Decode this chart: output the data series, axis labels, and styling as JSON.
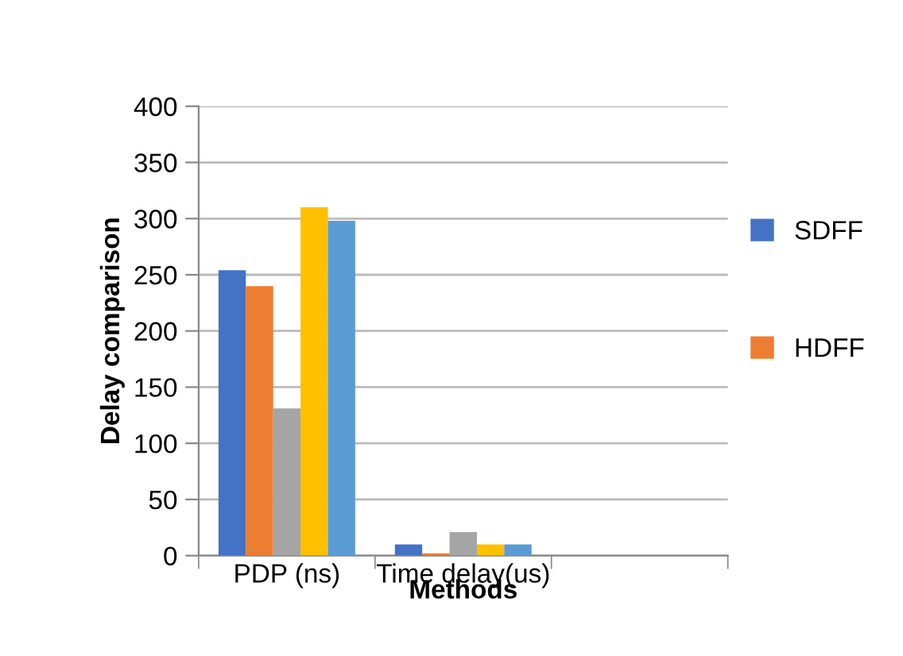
{
  "chart_data": {
    "type": "bar",
    "xlabel": "Methods",
    "ylabel": "Delay comparison",
    "categories": [
      "PDP (ns)",
      "Time delay(us)",
      null
    ],
    "series": [
      {
        "name": "SDFF",
        "color": "#4472c4",
        "values": [
          254,
          10,
          null
        ]
      },
      {
        "name": "HDFF",
        "color": "#ed7d31",
        "values": [
          240,
          2,
          null
        ]
      },
      {
        "color": "#a5a5a5",
        "values": [
          131,
          21,
          null
        ]
      },
      {
        "color": "#ffc000",
        "values": [
          310,
          10,
          null
        ]
      },
      {
        "color": "#5b9bd5",
        "values": [
          298,
          10,
          null
        ]
      }
    ],
    "ylim": [
      0,
      400
    ],
    "yticks": [
      0,
      50,
      100,
      150,
      200,
      250,
      300,
      350,
      400
    ],
    "grid": "y",
    "legend": "right"
  }
}
